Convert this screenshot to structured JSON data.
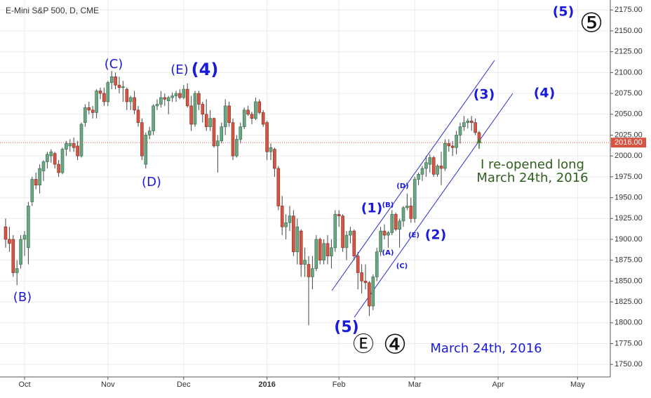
{
  "chart_data": {
    "type": "candlestick",
    "title": "E-Mini S&P 500, D, CME",
    "up_color": "#6ba583",
    "down_color": "#d75442",
    "grid": true,
    "ylim": [
      1735,
      2187
    ],
    "yticks": [
      {
        "value": 1750,
        "label": "1750.00"
      },
      {
        "value": 1775,
        "label": "1775.00"
      },
      {
        "value": 1800,
        "label": "1800.00"
      },
      {
        "value": 1825,
        "label": "1825.00"
      },
      {
        "value": 1850,
        "label": "1850.00"
      },
      {
        "value": 1875,
        "label": "1875.00"
      },
      {
        "value": 1900,
        "label": "1900.00"
      },
      {
        "value": 1925,
        "label": "1925.00"
      },
      {
        "value": 1950,
        "label": "1950.00"
      },
      {
        "value": 1975,
        "label": "1975.00"
      },
      {
        "value": 2000,
        "label": "2000.00"
      },
      {
        "value": 2025,
        "label": "2025.00"
      },
      {
        "value": 2050,
        "label": "2050.00"
      },
      {
        "value": 2075,
        "label": "2075.00"
      },
      {
        "value": 2100,
        "label": "2100.00"
      },
      {
        "value": 2125,
        "label": "2125.00"
      },
      {
        "value": 2150,
        "label": "2150.00"
      },
      {
        "value": 2175,
        "label": "2175.00"
      }
    ],
    "last_price": {
      "value": 2016,
      "label": "2016.00"
    },
    "categories": [
      null,
      null,
      null,
      null,
      null,
      "Oct",
      null,
      null,
      null,
      null,
      null,
      null,
      null,
      null,
      null,
      null,
      null,
      null,
      null,
      null,
      null,
      null,
      null,
      null,
      null,
      null,
      null,
      "Nov",
      null,
      null,
      null,
      null,
      null,
      null,
      null,
      null,
      null,
      null,
      null,
      null,
      null,
      null,
      null,
      null,
      null,
      null,
      null,
      "Dec",
      null,
      null,
      null,
      null,
      null,
      null,
      null,
      null,
      null,
      null,
      null,
      null,
      null,
      null,
      null,
      null,
      null,
      null,
      null,
      null,
      null,
      "2016",
      null,
      null,
      null,
      null,
      null,
      null,
      null,
      null,
      null,
      null,
      null,
      null,
      null,
      null,
      null,
      null,
      null,
      null,
      "Feb",
      null,
      null,
      null,
      null,
      null,
      null,
      null,
      null,
      null,
      null,
      null,
      null,
      null,
      null,
      null,
      null,
      null,
      null,
      null,
      "Mar",
      null,
      null,
      null,
      null,
      null,
      null,
      null,
      null,
      null,
      null,
      null,
      null,
      null,
      null,
      null,
      null,
      null,
      null,
      null,
      null,
      null,
      "Apr",
      null,
      null,
      null,
      null,
      null,
      null,
      null,
      null,
      null,
      null,
      null,
      null,
      null,
      null,
      null,
      null,
      null,
      null,
      null,
      null,
      "May",
      null,
      null,
      null,
      null,
      null,
      null,
      null,
      null
    ],
    "ohlc": [
      [
        1915,
        1925,
        1890,
        1900
      ],
      [
        1900,
        1915,
        1885,
        1895
      ],
      [
        1900,
        1905,
        1855,
        1860
      ],
      [
        1860,
        1875,
        1845,
        1865
      ],
      [
        1870,
        1905,
        1865,
        1900
      ],
      [
        1900,
        1910,
        1880,
        1905
      ],
      [
        1890,
        1945,
        1870,
        1940
      ],
      [
        1945,
        1975,
        1940,
        1972
      ],
      [
        1972,
        1980,
        1960,
        1965
      ],
      [
        1965,
        1990,
        1955,
        1985
      ],
      [
        1982,
        1995,
        1970,
        1993
      ],
      [
        1993,
        2005,
        1985,
        2002
      ],
      [
        2000,
        2008,
        1992,
        2005
      ],
      [
        2003,
        2005,
        1985,
        1990
      ],
      [
        1990,
        1995,
        1975,
        1980
      ],
      [
        1980,
        2010,
        1978,
        2008
      ],
      [
        2008,
        2018,
        2000,
        2015
      ],
      [
        2012,
        2020,
        2005,
        2015
      ],
      [
        2015,
        2022,
        2005,
        2010
      ],
      [
        2012,
        2018,
        1995,
        2000
      ],
      [
        2000,
        2040,
        1998,
        2038
      ],
      [
        2040,
        2062,
        2035,
        2058
      ],
      [
        2058,
        2065,
        2050,
        2055
      ],
      [
        2055,
        2060,
        2045,
        2052
      ],
      [
        2052,
        2080,
        2045,
        2078
      ],
      [
        2078,
        2082,
        2068,
        2075
      ],
      [
        2075,
        2082,
        2060,
        2065
      ],
      [
        2065,
        2090,
        2060,
        2088
      ],
      [
        2088,
        2102,
        2080,
        2095
      ],
      [
        2095,
        2100,
        2080,
        2085
      ],
      [
        2085,
        2095,
        2075,
        2082
      ],
      [
        2082,
        2090,
        2065,
        2083
      ],
      [
        2080,
        2082,
        2055,
        2065
      ],
      [
        2065,
        2072,
        2055,
        2070
      ],
      [
        2070,
        2078,
        2050,
        2055
      ],
      [
        2055,
        2060,
        2035,
        2040
      ],
      [
        2040,
        2045,
        1995,
        2000
      ],
      [
        1990,
        2028,
        1985,
        2025
      ],
      [
        2025,
        2035,
        2020,
        2030
      ],
      [
        2030,
        2062,
        2025,
        2060
      ],
      [
        2060,
        2068,
        2055,
        2062
      ],
      [
        2062,
        2078,
        2058,
        2070
      ],
      [
        2070,
        2075,
        2060,
        2068
      ],
      [
        2066,
        2072,
        2050,
        2070
      ],
      [
        2070,
        2076,
        2065,
        2072
      ],
      [
        2072,
        2078,
        2065,
        2075
      ],
      [
        2075,
        2080,
        2068,
        2070
      ],
      [
        2070,
        2085,
        2068,
        2080
      ],
      [
        2080,
        2087,
        2058,
        2060
      ],
      [
        2060,
        2072,
        2030,
        2038
      ],
      [
        2038,
        2078,
        2035,
        2075
      ],
      [
        2075,
        2078,
        2055,
        2062
      ],
      [
        2062,
        2065,
        2040,
        2050
      ],
      [
        2050,
        2068,
        2030,
        2035
      ],
      [
        2035,
        2055,
        2030,
        2045
      ],
      [
        2045,
        2046,
        2010,
        2012
      ],
      [
        2012,
        2025,
        1980,
        2018
      ],
      [
        2018,
        2040,
        2015,
        2035
      ],
      [
        2035,
        2068,
        2025,
        2060
      ],
      [
        2060,
        2065,
        2035,
        2040
      ],
      [
        2040,
        2045,
        1995,
        2000
      ],
      [
        2000,
        2025,
        1998,
        2020
      ],
      [
        2020,
        2040,
        2015,
        2035
      ],
      [
        2035,
        2058,
        2032,
        2055
      ],
      [
        2055,
        2060,
        2048,
        2050
      ],
      [
        2050,
        2053,
        2038,
        2045
      ],
      [
        2045,
        2070,
        2043,
        2065
      ],
      [
        2065,
        2068,
        2050,
        2052
      ],
      [
        2052,
        2055,
        2035,
        2038
      ],
      [
        2040,
        2042,
        1995,
        2005
      ],
      [
        2005,
        2015,
        1995,
        2010
      ],
      [
        2008,
        2010,
        1975,
        1985
      ],
      [
        1985,
        1988,
        1935,
        1940
      ],
      [
        1940,
        1952,
        1905,
        1915
      ],
      [
        1915,
        1930,
        1900,
        1920
      ],
      [
        1920,
        1940,
        1910,
        1928
      ],
      [
        1928,
        1935,
        1880,
        1885
      ],
      [
        1885,
        1925,
        1870,
        1915
      ],
      [
        1910,
        1912,
        1855,
        1870
      ],
      [
        1870,
        1890,
        1855,
        1875
      ],
      [
        1870,
        1880,
        1797,
        1855
      ],
      [
        1855,
        1880,
        1840,
        1865
      ],
      [
        1865,
        1905,
        1862,
        1900
      ],
      [
        1900,
        1902,
        1870,
        1875
      ],
      [
        1875,
        1900,
        1870,
        1895
      ],
      [
        1895,
        1905,
        1870,
        1880
      ],
      [
        1880,
        1900,
        1865,
        1890
      ],
      [
        1890,
        1935,
        1885,
        1930
      ],
      [
        1930,
        1935,
        1915,
        1928
      ],
      [
        1928,
        1930,
        1885,
        1890
      ],
      [
        1890,
        1910,
        1875,
        1905
      ],
      [
        1905,
        1915,
        1895,
        1910
      ],
      [
        1910,
        1912,
        1875,
        1880
      ],
      [
        1880,
        1885,
        1840,
        1860
      ],
      [
        1860,
        1870,
        1835,
        1850
      ],
      [
        1850,
        1870,
        1840,
        1848
      ],
      [
        1848,
        1850,
        1808,
        1820
      ],
      [
        1820,
        1858,
        1815,
        1855
      ],
      [
        1855,
        1890,
        1850,
        1885
      ],
      [
        1885,
        1915,
        1880,
        1910
      ],
      [
        1910,
        1918,
        1900,
        1905
      ],
      [
        1905,
        1910,
        1890,
        1908
      ],
      [
        1908,
        1935,
        1905,
        1930
      ],
      [
        1930,
        1932,
        1910,
        1912
      ],
      [
        1912,
        1925,
        1890,
        1922
      ],
      [
        1922,
        1940,
        1915,
        1938
      ],
      [
        1938,
        1955,
        1935,
        1940
      ],
      [
        1940,
        1950,
        1920,
        1925
      ],
      [
        1925,
        1975,
        1920,
        1972
      ],
      [
        1972,
        1980,
        1965,
        1978
      ],
      [
        1978,
        1988,
        1970,
        1985
      ],
      [
        1985,
        2000,
        1975,
        1992
      ],
      [
        1990,
        2002,
        1980,
        1998
      ],
      [
        1998,
        2000,
        1975,
        1978
      ],
      [
        1978,
        1990,
        1975,
        1988
      ],
      [
        1988,
        2005,
        1965,
        1985
      ],
      [
        1985,
        2020,
        1982,
        2015
      ],
      [
        2015,
        2020,
        2005,
        2012
      ],
      [
        2012,
        2018,
        2000,
        2010
      ],
      [
        2010,
        2030,
        2002,
        2025
      ],
      [
        2025,
        2040,
        2015,
        2035
      ],
      [
        2035,
        2048,
        2030,
        2040
      ],
      [
        2040,
        2045,
        2033,
        2042
      ],
      [
        2042,
        2048,
        2030,
        2040
      ],
      [
        2040,
        2045,
        2025,
        2028
      ],
      [
        2028,
        2030,
        2012,
        2016
      ],
      null,
      null,
      null,
      null,
      null,
      null,
      null,
      null,
      null,
      null,
      null,
      null,
      null,
      null,
      null,
      null,
      null,
      null,
      null,
      null,
      null,
      null,
      null,
      null,
      null,
      null,
      null,
      null,
      null,
      null,
      null,
      null,
      null,
      null
    ],
    "annotations": [
      "(5)",
      "⑤",
      "(C)",
      "(E)",
      "(4)",
      "(D)",
      "(B)",
      "(3)",
      "(4)",
      "I re-opened long",
      "March 24th, 2016",
      "(D)",
      "(B)",
      "(1)",
      "(A)",
      "(E)",
      "(2)",
      "(C)",
      "(5)",
      "Ⓔ",
      "④",
      "March 24th, 2016"
    ]
  }
}
